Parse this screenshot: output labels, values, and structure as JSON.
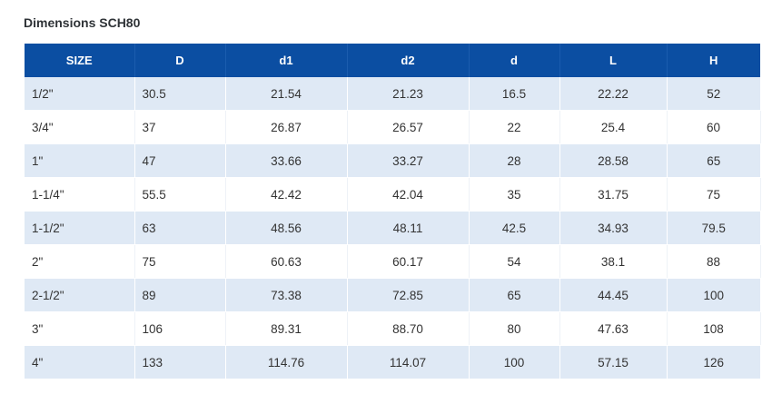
{
  "title": "Dimensions SCH80",
  "columns": [
    "SIZE",
    "D",
    "d1",
    "d2",
    "d",
    "L",
    "H"
  ],
  "rows": [
    [
      "1/2\"",
      "30.5",
      "21.54",
      "21.23",
      "16.5",
      "22.22",
      "52"
    ],
    [
      "3/4\"",
      "37",
      "26.87",
      "26.57",
      "22",
      "25.4",
      "60"
    ],
    [
      "1\"",
      "47",
      "33.66",
      "33.27",
      "28",
      "28.58",
      "65"
    ],
    [
      "1-1/4\"",
      "55.5",
      "42.42",
      "42.04",
      "35",
      "31.75",
      "75"
    ],
    [
      "1-1/2\"",
      "63",
      "48.56",
      "48.11",
      "42.5",
      "34.93",
      "79.5"
    ],
    [
      "2\"",
      "75",
      "60.63",
      "60.17",
      "54",
      "38.1",
      "88"
    ],
    [
      "2-1/2\"",
      "89",
      "73.38",
      "72.85",
      "65",
      "44.45",
      "100"
    ],
    [
      "3\"",
      "106",
      "89.31",
      "88.70",
      "80",
      "47.63",
      "108"
    ],
    [
      "4\"",
      "133",
      "114.76",
      "114.07",
      "100",
      "57.15",
      "126"
    ]
  ],
  "colors": {
    "header_bg": "#0b4ea2",
    "row_alt_bg": "#dfe9f5"
  }
}
